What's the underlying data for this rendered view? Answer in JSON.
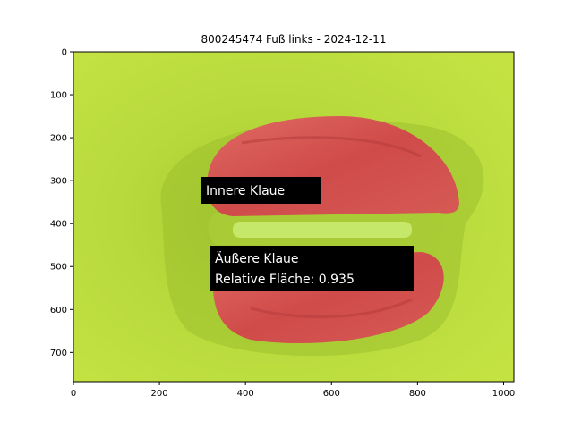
{
  "figure": {
    "title": "800245474 Fuß links - 2024-12-11",
    "image_size": [
      1024,
      768
    ],
    "x_ticks": [
      0,
      200,
      400,
      600,
      800,
      1000
    ],
    "y_ticks": [
      0,
      100,
      200,
      300,
      400,
      500,
      600,
      700
    ],
    "annotations": [
      {
        "lines": [
          "Innere Klaue"
        ]
      },
      {
        "lines": [
          "Äußere Klaue",
          "Relative Fläche: 0.935"
        ]
      }
    ],
    "colors": {
      "background_green": "#c2e33f",
      "claw_overlay_red": "#d8514f",
      "annotation_box": "#000000"
    }
  }
}
